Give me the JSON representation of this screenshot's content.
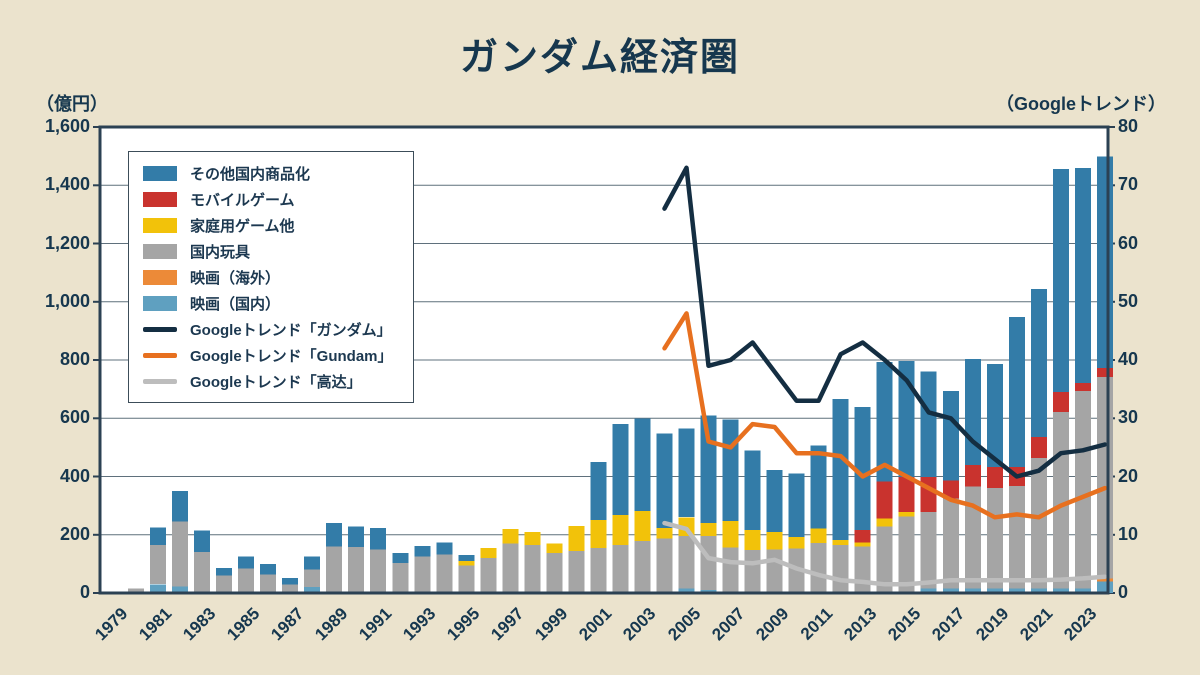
{
  "title": "ガンダム経済圏",
  "left_axis": {
    "unit": "（億円）",
    "tick_labels": [
      "0",
      "200",
      "400",
      "600",
      "800",
      "1,000",
      "1,200",
      "1,400",
      "1,600"
    ],
    "max": 1600
  },
  "right_axis": {
    "unit": "（Googleトレンド）",
    "tick_labels": [
      "0",
      "10",
      "20",
      "30",
      "40",
      "50",
      "60",
      "70",
      "80"
    ],
    "max": 80
  },
  "colors": {
    "background": "#ebe3cd",
    "plot_background": "#ffffff",
    "text": "#16374e",
    "frame": "#2b4153",
    "grid": "#5f707c",
    "bar_other_merch": "#337ca8",
    "bar_mobile_game": "#c9332e",
    "bar_console_game": "#f2c20a",
    "bar_toys": "#a5a5a5",
    "bar_movie_overseas": "#ec8a38",
    "bar_movie_domestic": "#5fa0c0",
    "line_trend_jp": "#142e42",
    "line_trend_en": "#e7701f",
    "line_trend_cn": "#bdbdbd"
  },
  "legend": {
    "items": [
      {
        "label": "その他国内商品化",
        "swatch": "bar",
        "color": "#337ca8"
      },
      {
        "label": "モバイルゲーム",
        "swatch": "bar",
        "color": "#c9332e"
      },
      {
        "label": "家庭用ゲーム他",
        "swatch": "bar",
        "color": "#f2c20a"
      },
      {
        "label": "国内玩具",
        "swatch": "bar",
        "color": "#a5a5a5"
      },
      {
        "label": "映画（海外）",
        "swatch": "bar",
        "color": "#ec8a38"
      },
      {
        "label": "映画（国内）",
        "swatch": "bar",
        "color": "#5fa0c0"
      },
      {
        "label": "Googleトレンド「ガンダム」",
        "swatch": "line",
        "color": "#142e42"
      },
      {
        "label": "Googleトレンド「Gundam」",
        "swatch": "line",
        "color": "#e7701f"
      },
      {
        "label": "Googleトレンド「高达」",
        "swatch": "line",
        "color": "#bdbdbd"
      }
    ]
  },
  "chart_data": {
    "type": "bar",
    "stacked": true,
    "title": "ガンダム経済圏",
    "ylabel_left": "（億円）",
    "ylabel_right": "（Googleトレンド）",
    "ylim_left": [
      0,
      1600
    ],
    "ylim_right": [
      0,
      80
    ],
    "grid": true,
    "legend_position": "upper-left",
    "categories": [
      1979,
      1980,
      1981,
      1982,
      1983,
      1984,
      1985,
      1986,
      1987,
      1988,
      1989,
      1990,
      1991,
      1992,
      1993,
      1994,
      1995,
      1996,
      1997,
      1998,
      1999,
      2000,
      2001,
      2002,
      2003,
      2004,
      2005,
      2006,
      2007,
      2008,
      2009,
      2010,
      2011,
      2012,
      2013,
      2014,
      2015,
      2016,
      2017,
      2018,
      2019,
      2020,
      2021,
      2022,
      2023,
      2024
    ],
    "x_tick_labels": [
      "1979",
      "1981",
      "1983",
      "1985",
      "1987",
      "1989",
      "1991",
      "1993",
      "1995",
      "1997",
      "1999",
      "2001",
      "2003",
      "2005",
      "2007",
      "2009",
      "2011",
      "2013",
      "2015",
      "2017",
      "2019",
      "2021",
      "2023"
    ],
    "series": [
      {
        "name": "映画（国内）",
        "color": "#5fa0c0",
        "axis": "left",
        "values": [
          0,
          0,
          30,
          22,
          0,
          0,
          0,
          0,
          0,
          20,
          0,
          0,
          0,
          0,
          0,
          0,
          0,
          0,
          0,
          0,
          0,
          0,
          0,
          0,
          0,
          0,
          15,
          10,
          0,
          0,
          0,
          0,
          0,
          0,
          0,
          0,
          0,
          15,
          15,
          15,
          15,
          15,
          15,
          15,
          15,
          40
        ]
      },
      {
        "name": "映画（海外）",
        "color": "#ec8a38",
        "axis": "left",
        "values": [
          0,
          0,
          0,
          0,
          0,
          0,
          0,
          0,
          0,
          0,
          0,
          0,
          0,
          0,
          0,
          0,
          0,
          0,
          0,
          0,
          0,
          0,
          0,
          0,
          0,
          0,
          0,
          0,
          0,
          0,
          0,
          0,
          0,
          0,
          0,
          0,
          0,
          0,
          0,
          0,
          0,
          0,
          0,
          0,
          0,
          10
        ]
      },
      {
        "name": "国内玩具",
        "color": "#a5a5a5",
        "axis": "left",
        "values": [
          5,
          15,
          135,
          223,
          140,
          60,
          85,
          64,
          30,
          60,
          160,
          158,
          150,
          103,
          125,
          132,
          95,
          120,
          170,
          165,
          137,
          145,
          155,
          165,
          178,
          188,
          180,
          185,
          157,
          148,
          150,
          153,
          171,
          165,
          159,
          228,
          262,
          264,
          310,
          350,
          345,
          352,
          449,
          607,
          679,
          692
        ]
      },
      {
        "name": "家庭用ゲーム他",
        "color": "#f2c20a",
        "axis": "left",
        "values": [
          0,
          0,
          0,
          0,
          0,
          0,
          0,
          0,
          0,
          0,
          0,
          0,
          0,
          0,
          0,
          0,
          15,
          35,
          50,
          45,
          33,
          85,
          95,
          103,
          103,
          35,
          65,
          45,
          90,
          68,
          60,
          40,
          51,
          17,
          14,
          28,
          17,
          0,
          0,
          0,
          0,
          0,
          0,
          0,
          0,
          0
        ]
      },
      {
        "name": "モバイルゲーム",
        "color": "#c9332e",
        "axis": "left",
        "values": [
          0,
          0,
          0,
          0,
          0,
          0,
          0,
          0,
          0,
          0,
          0,
          0,
          0,
          0,
          0,
          0,
          0,
          0,
          0,
          0,
          0,
          0,
          0,
          0,
          0,
          0,
          0,
          0,
          0,
          0,
          0,
          0,
          0,
          0,
          43,
          126,
          120,
          120,
          62,
          75,
          73,
          66,
          72,
          68,
          27,
          30
        ]
      },
      {
        "name": "その他国内商品化",
        "color": "#337ca8",
        "axis": "left",
        "values": [
          0,
          0,
          60,
          105,
          75,
          25,
          40,
          36,
          22,
          45,
          80,
          70,
          73,
          34,
          36,
          41,
          20,
          0,
          0,
          0,
          0,
          0,
          200,
          312,
          319,
          325,
          305,
          370,
          348,
          274,
          212,
          218,
          284,
          484,
          422,
          411,
          397,
          361,
          306,
          363,
          353,
          515,
          508,
          765,
          739,
          726
        ]
      }
    ],
    "lines": [
      {
        "name": "Googleトレンド「ガンダム」",
        "color": "#142e42",
        "axis": "right",
        "start_year": 2004,
        "values": [
          66,
          73,
          39,
          40,
          43,
          38,
          33,
          33,
          41,
          43,
          40,
          36.5,
          31,
          30,
          26,
          23,
          20,
          21,
          24,
          24.5,
          25.5
        ]
      },
      {
        "name": "Googleトレンド「Gundam」",
        "color": "#e7701f",
        "axis": "right",
        "start_year": 2004,
        "values": [
          42,
          48,
          26,
          25,
          29,
          28.5,
          24,
          24,
          23.5,
          20,
          22,
          20,
          18,
          16,
          15,
          13,
          13.5,
          13,
          15,
          16.5,
          18
        ]
      },
      {
        "name": "Googleトレンド「高达」",
        "color": "#bdbdbd",
        "axis": "right",
        "start_year": 2004,
        "values": [
          12,
          11,
          6,
          5.3,
          5.1,
          5.7,
          4.2,
          3.1,
          2.2,
          1.9,
          1.5,
          1.5,
          1.8,
          2.2,
          2.2,
          2.2,
          2.2,
          2.2,
          2.3,
          2.5,
          2.8
        ]
      }
    ]
  }
}
